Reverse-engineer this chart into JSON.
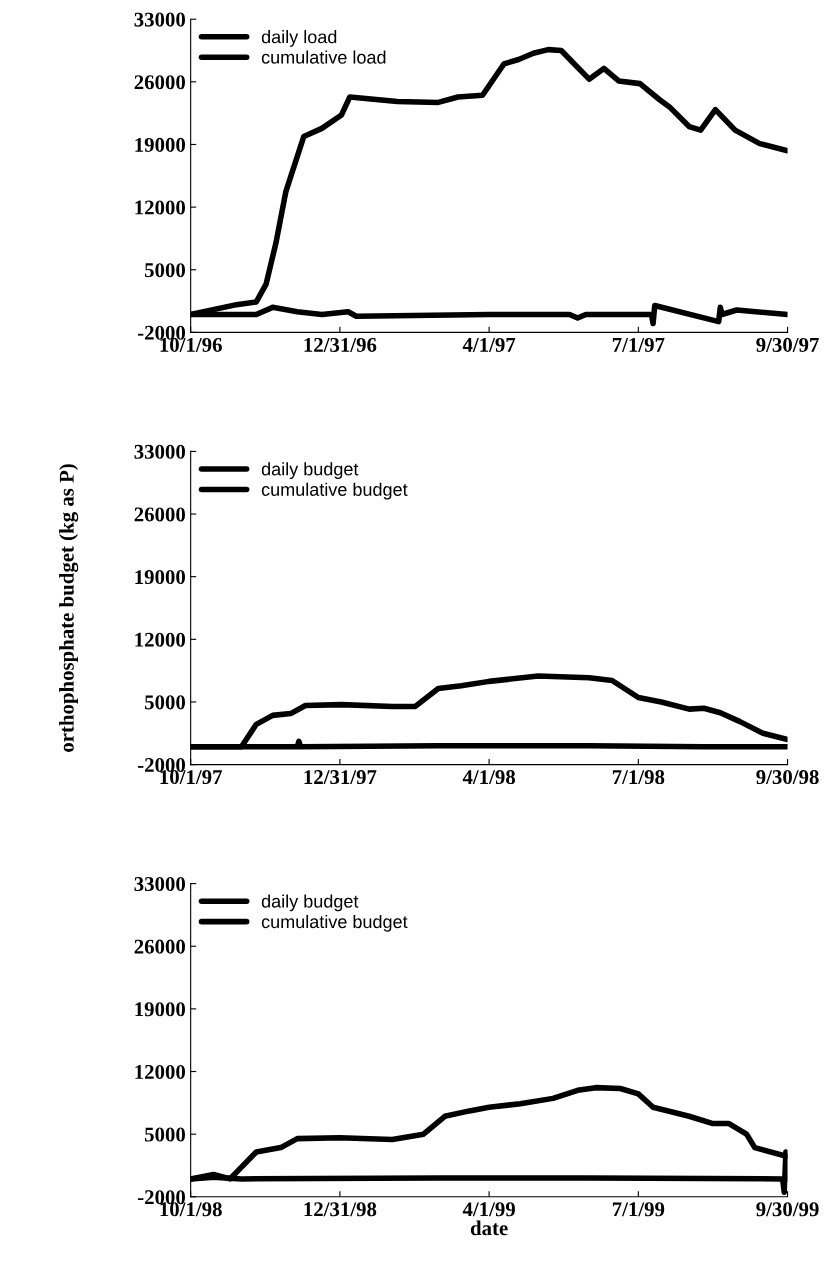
{
  "chart_data": [
    {
      "type": "line",
      "legend": "top left",
      "grid": false,
      "ylim": [
        -2000,
        33000
      ],
      "yticks": [
        -2000,
        5000,
        12000,
        19000,
        26000,
        33000
      ],
      "xlim": [
        "1996-10-01",
        "1997-09-30"
      ],
      "xticks": [
        {
          "value": "1996-10-01",
          "label": "10/1/96"
        },
        {
          "value": "1996-12-31",
          "label": "12/31/96"
        },
        {
          "value": "1997-04-01",
          "label": "4/1/97"
        },
        {
          "value": "1997-07-01",
          "label": "7/1/97"
        },
        {
          "value": "1997-09-30",
          "label": "9/30/97"
        }
      ],
      "series": [
        {
          "name": "daily load",
          "color": "#000000",
          "x": [
            "1996-10-01",
            "1996-11-10",
            "1996-11-20",
            "1996-12-05",
            "1996-12-20",
            "1997-01-05",
            "1997-01-10",
            "1997-04-01",
            "1997-05-20",
            "1997-05-25",
            "1997-05-30",
            "1997-07-09",
            "1997-07-10",
            "1997-07-11",
            "1997-08-19",
            "1997-08-20",
            "1997-08-21",
            "1997-08-30",
            "1997-09-30"
          ],
          "values": [
            0,
            0,
            800,
            300,
            0,
            300,
            -200,
            0,
            0,
            -400,
            0,
            0,
            -1000,
            1000,
            -800,
            800,
            0,
            500,
            0
          ]
        },
        {
          "name": "cumulative load",
          "color": "#000000",
          "x": [
            "1996-10-01",
            "1996-10-29",
            "1996-11-10",
            "1996-11-16",
            "1996-11-22",
            "1996-11-28",
            "1996-12-09",
            "1996-12-20",
            "1997-01-01",
            "1997-01-06",
            "1997-02-04",
            "1997-03-01",
            "1997-03-13",
            "1997-03-28",
            "1997-04-10",
            "1997-04-19",
            "1997-04-28",
            "1997-05-07",
            "1997-05-15",
            "1997-05-23",
            "1997-06-01",
            "1997-06-10",
            "1997-06-19",
            "1997-07-02",
            "1997-07-14",
            "1997-07-20",
            "1997-08-01",
            "1997-08-08",
            "1997-08-17",
            "1997-08-29",
            "1997-09-13",
            "1997-09-30"
          ],
          "values": [
            0,
            1100,
            1400,
            3400,
            8000,
            13700,
            19900,
            20800,
            22300,
            24300,
            23800,
            23700,
            24300,
            24500,
            28000,
            28500,
            29200,
            29600,
            29500,
            28000,
            26300,
            27500,
            26100,
            25800,
            24000,
            23200,
            21000,
            20600,
            22900,
            20600,
            19100,
            18300
          ]
        }
      ]
    },
    {
      "type": "line",
      "legend": "top left",
      "grid": false,
      "ylabel": "orthophosphate budget (kg as P)",
      "ylim": [
        -2000,
        33000
      ],
      "yticks": [
        -2000,
        5000,
        12000,
        19000,
        26000,
        33000
      ],
      "xlim": [
        "1997-10-01",
        "1998-09-30"
      ],
      "xticks": [
        {
          "value": "1997-10-01",
          "label": "10/1/97"
        },
        {
          "value": "1997-12-31",
          "label": "12/31/97"
        },
        {
          "value": "1998-04-01",
          "label": "4/1/98"
        },
        {
          "value": "1998-07-01",
          "label": "7/1/98"
        },
        {
          "value": "1998-09-30",
          "label": "9/30/98"
        }
      ],
      "series": [
        {
          "name": "daily budget",
          "color": "#000000",
          "x": [
            "1997-10-01",
            "1997-12-05",
            "1997-12-06",
            "1997-12-07",
            "1998-03-01",
            "1998-06-01",
            "1998-08-10",
            "1998-09-30"
          ],
          "values": [
            0,
            0,
            600,
            0,
            100,
            100,
            0,
            0
          ]
        },
        {
          "name": "cumulative budget",
          "color": "#000000",
          "x": [
            "1997-10-01",
            "1997-11-01",
            "1997-11-10",
            "1997-11-20",
            "1997-12-01",
            "1997-12-10",
            "1998-01-01",
            "1998-02-01",
            "1998-02-15",
            "1998-03-01",
            "1998-03-15",
            "1998-04-01",
            "1998-05-01",
            "1998-06-01",
            "1998-06-15",
            "1998-07-01",
            "1998-07-15",
            "1998-08-01",
            "1998-08-10",
            "1998-08-20",
            "1998-09-01",
            "1998-09-15",
            "1998-09-30"
          ],
          "values": [
            0,
            0,
            2500,
            3500,
            3700,
            4600,
            4700,
            4500,
            4500,
            6500,
            6800,
            7300,
            7900,
            7700,
            7400,
            5500,
            5000,
            4200,
            4300,
            3800,
            2800,
            1500,
            800
          ]
        }
      ]
    },
    {
      "type": "line",
      "legend": "top left",
      "grid": false,
      "xlabel": "date",
      "ylim": [
        -2000,
        33000
      ],
      "yticks": [
        -2000,
        5000,
        12000,
        19000,
        26000,
        33000
      ],
      "xlim": [
        "1998-10-01",
        "1999-09-30"
      ],
      "xticks": [
        {
          "value": "1998-10-01",
          "label": "10/1/98"
        },
        {
          "value": "1998-12-31",
          "label": "12/31/98"
        },
        {
          "value": "1999-04-01",
          "label": "4/1/99"
        },
        {
          "value": "1999-07-01",
          "label": "7/1/99"
        },
        {
          "value": "1999-09-30",
          "label": "9/30/99"
        }
      ],
      "series": [
        {
          "name": "daily budget",
          "color": "#000000",
          "x": [
            "1998-10-01",
            "1998-10-15",
            "1998-11-01",
            "1999-03-01",
            "1999-06-01",
            "1999-09-27",
            "1999-09-28",
            "1999-09-29",
            "1999-09-30"
          ],
          "values": [
            0,
            200,
            0,
            100,
            100,
            0,
            -1500,
            3000,
            0
          ]
        },
        {
          "name": "cumulative budget",
          "color": "#000000",
          "x": [
            "1998-10-01",
            "1998-10-15",
            "1998-10-25",
            "1998-11-10",
            "1998-11-25",
            "1998-12-05",
            "1998-12-31",
            "1999-02-01",
            "1999-02-20",
            "1999-03-05",
            "1999-03-20",
            "1999-04-01",
            "1999-04-20",
            "1999-05-10",
            "1999-05-25",
            "1999-06-05",
            "1999-06-20",
            "1999-07-01",
            "1999-07-10",
            "1999-08-01",
            "1999-08-15",
            "1999-08-25",
            "1999-09-05",
            "1999-09-10",
            "1999-09-30"
          ],
          "values": [
            0,
            500,
            0,
            3000,
            3500,
            4500,
            4600,
            4400,
            5000,
            7000,
            7600,
            8000,
            8400,
            9000,
            9900,
            10200,
            10100,
            9500,
            8000,
            7000,
            6200,
            6200,
            5000,
            3500,
            2500
          ]
        }
      ]
    }
  ]
}
